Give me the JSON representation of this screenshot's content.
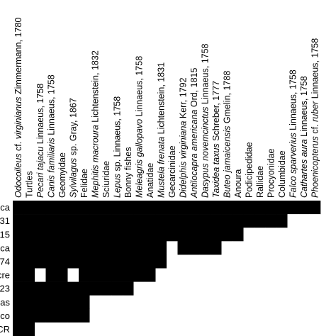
{
  "chart_data": {
    "type": "heatmap",
    "title": "",
    "xlabel": "",
    "ylabel": "",
    "colors": {
      "present": "#000000",
      "absent": "#ffffff"
    },
    "columns": [
      [
        {
          "t": "Odocoileus",
          "i": true
        },
        {
          "t": " cf. ",
          "i": false
        },
        {
          "t": "virginianus",
          "i": true
        },
        {
          "t": " Zimmermann, 1780",
          "i": false
        }
      ],
      [
        {
          "t": "Turtles",
          "i": false
        }
      ],
      [
        {
          "t": "Pecari tajacu",
          "i": true
        },
        {
          "t": " Linnaeus, 1758",
          "i": false
        }
      ],
      [
        {
          "t": "Canis familiaris",
          "i": true
        },
        {
          "t": " Linnaeus, 1758",
          "i": false
        }
      ],
      [
        {
          "t": "Geomyidae",
          "i": false
        }
      ],
      [
        {
          "t": "Sylvilagus",
          "i": true
        },
        {
          "t": " sp. Gray, 1867",
          "i": false
        }
      ],
      [
        {
          "t": "Felidae",
          "i": false
        }
      ],
      [
        {
          "t": "Mephitis macroura",
          "i": true
        },
        {
          "t": " Lichtenstein, 1832",
          "i": false
        }
      ],
      [
        {
          "t": "Sciuridae",
          "i": false
        }
      ],
      [
        {
          "t": "Lepus",
          "i": true
        },
        {
          "t": " sp. Linnaeus, 1758",
          "i": false
        }
      ],
      [
        {
          "t": "Bonny fishes",
          "i": false
        }
      ],
      [
        {
          "t": "Meleagris gallopavo",
          "i": true
        },
        {
          "t": " Linnaeus, 1758",
          "i": false
        }
      ],
      [
        {
          "t": "Anatidae",
          "i": false
        }
      ],
      [
        {
          "t": "Mustela frenata",
          "i": true
        },
        {
          "t": " Lichtenstein, 1831",
          "i": false
        }
      ],
      [
        {
          "t": "Gecarcinidae",
          "i": false
        }
      ],
      [
        {
          "t": "Didelphis virginiana",
          "i": true
        },
        {
          "t": " Kerr, 1792",
          "i": false
        }
      ],
      [
        {
          "t": "Antilocapra americana",
          "i": true
        },
        {
          "t": " Ord, 1815",
          "i": false
        }
      ],
      [
        {
          "t": "Dasypus novemcinctus",
          "i": true
        },
        {
          "t": " Linnaeus, 1758",
          "i": false
        }
      ],
      [
        {
          "t": "Taxidea taxus",
          "i": true
        },
        {
          "t": " Schreber, 1777",
          "i": false
        }
      ],
      [
        {
          "t": "Buteo jamaicensis",
          "i": true
        },
        {
          "t": " Gmelin, 1788",
          "i": false
        }
      ],
      [
        {
          "t": "Anoura",
          "i": false
        }
      ],
      [
        {
          "t": "Podicipedidae",
          "i": false
        }
      ],
      [
        {
          "t": "Rallidae",
          "i": false
        }
      ],
      [
        {
          "t": "Procyonidae",
          "i": false
        }
      ],
      [
        {
          "t": "Columbidae",
          "i": false
        }
      ],
      [
        {
          "t": "Falco sparverius",
          "i": true
        },
        {
          "t": " Linnaeus, 1758",
          "i": false
        }
      ],
      [
        {
          "t": "Cathartes aura",
          "i": true
        },
        {
          "t": " Linnaeus, 1758",
          "i": false
        }
      ],
      [
        {
          "t": "Phoenicopterus",
          "i": true
        },
        {
          "t": " cf. ",
          "i": false
        },
        {
          "t": "ruber",
          "i": true
        },
        {
          "t": " Linnaeus, 1758",
          "i": false
        }
      ]
    ],
    "rows": [
      "ca",
      "31",
      "15",
      "ca",
      "74",
      "cre",
      "23",
      "as",
      "co",
      "CR"
    ],
    "matrix": [
      [
        1,
        1,
        1,
        1,
        1,
        1,
        1,
        1,
        1,
        1,
        1,
        1,
        1,
        1,
        1,
        1,
        1,
        1,
        1,
        1,
        1,
        1,
        1,
        1,
        1,
        1,
        1,
        1
      ],
      [
        1,
        1,
        1,
        1,
        1,
        1,
        1,
        1,
        1,
        1,
        1,
        1,
        1,
        1,
        1,
        1,
        1,
        1,
        1,
        1,
        1,
        1,
        1,
        1,
        1,
        0,
        0,
        0
      ],
      [
        1,
        1,
        1,
        1,
        1,
        1,
        1,
        1,
        1,
        1,
        1,
        1,
        1,
        1,
        1,
        1,
        1,
        1,
        1,
        1,
        1,
        0,
        0,
        0,
        0,
        0,
        0,
        0
      ],
      [
        1,
        1,
        1,
        1,
        1,
        1,
        1,
        1,
        1,
        1,
        1,
        1,
        1,
        1,
        0,
        1,
        1,
        1,
        1,
        0,
        0,
        0,
        0,
        0,
        0,
        0,
        0,
        0
      ],
      [
        1,
        1,
        1,
        1,
        1,
        1,
        1,
        1,
        1,
        1,
        1,
        1,
        1,
        1,
        0,
        0,
        0,
        0,
        0,
        0,
        0,
        0,
        0,
        0,
        0,
        0,
        0,
        0
      ],
      [
        1,
        1,
        0,
        1,
        1,
        0,
        1,
        1,
        1,
        1,
        1,
        1,
        1,
        0,
        0,
        0,
        0,
        0,
        0,
        0,
        0,
        0,
        0,
        0,
        0,
        0,
        0,
        0
      ],
      [
        1,
        1,
        1,
        1,
        1,
        1,
        1,
        1,
        1,
        1,
        1,
        0,
        0,
        0,
        0,
        0,
        0,
        0,
        0,
        0,
        0,
        0,
        0,
        0,
        0,
        0,
        0,
        0
      ],
      [
        1,
        1,
        1,
        1,
        1,
        1,
        1,
        0,
        0,
        0,
        0,
        0,
        0,
        0,
        0,
        0,
        0,
        0,
        0,
        0,
        0,
        0,
        0,
        0,
        0,
        0,
        0,
        0
      ],
      [
        1,
        1,
        1,
        1,
        1,
        1,
        1,
        0,
        0,
        0,
        0,
        0,
        0,
        0,
        0,
        0,
        0,
        0,
        0,
        0,
        0,
        0,
        0,
        0,
        0,
        0,
        0,
        0
      ],
      [
        1,
        1,
        0,
        0,
        0,
        0,
        0,
        0,
        0,
        0,
        0,
        0,
        0,
        0,
        0,
        0,
        0,
        0,
        0,
        0,
        0,
        0,
        0,
        0,
        0,
        0,
        0,
        0
      ]
    ]
  }
}
